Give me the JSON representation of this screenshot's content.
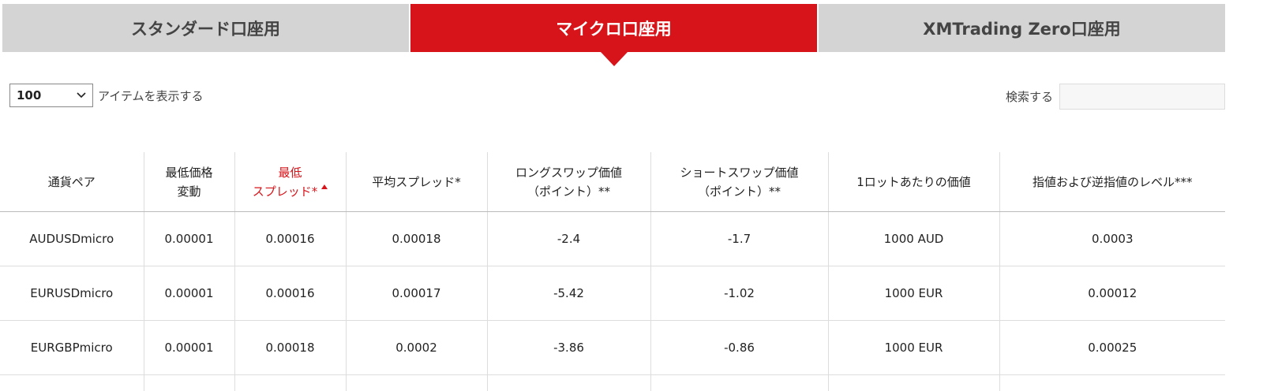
{
  "tabs": [
    "スタンダード口座用",
    "マイクロ口座用",
    "XMTrading Zero口座用"
  ],
  "length_control": {
    "value": "100",
    "label": "アイテムを表示する"
  },
  "search": {
    "label": "検索する"
  },
  "table": {
    "headers": [
      "通貨ペア",
      "最低価格\n変動",
      "最低\nスプレッド*",
      "平均スプレッド*",
      "ロングスワップ価値\n（ポイント）**",
      "ショートスワップ価値\n（ポイント）**",
      "1ロットあたりの価値",
      "指値および逆指値のレベル***"
    ],
    "rows": [
      [
        "AUDUSDmicro",
        "0.00001",
        "0.00016",
        "0.00018",
        "-2.4",
        "-1.7",
        "1000 AUD",
        "0.0003"
      ],
      [
        "EURUSDmicro",
        "0.00001",
        "0.00016",
        "0.00017",
        "-5.42",
        "-1.02",
        "1000 EUR",
        "0.00012"
      ],
      [
        "EURGBPmicro",
        "0.00001",
        "0.00018",
        "0.0002",
        "-3.86",
        "-0.86",
        "1000 EUR",
        "0.00025"
      ]
    ]
  }
}
